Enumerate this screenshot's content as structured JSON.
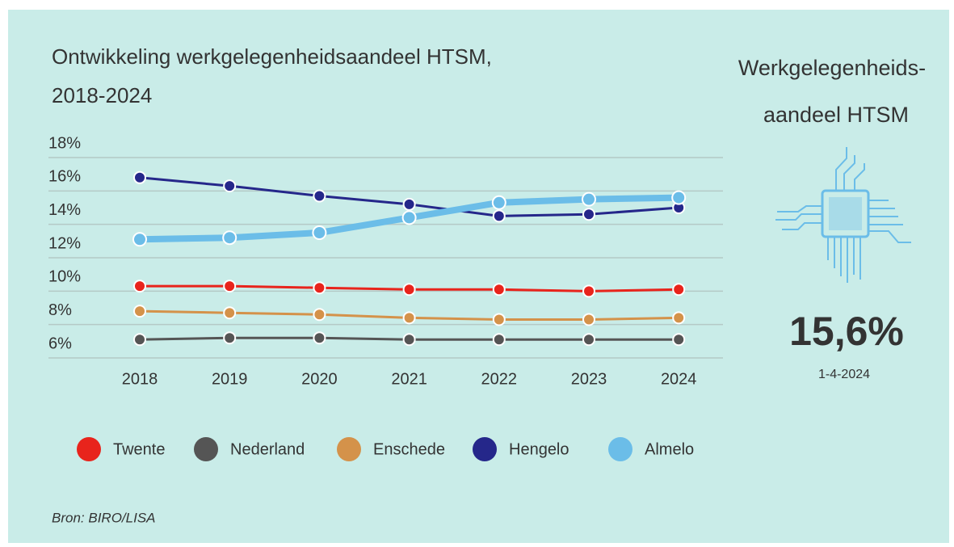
{
  "chart_data": {
    "type": "line",
    "title": [
      "Ontwikkeling werkgelegenheidsaandeel HTSM,",
      "2018-2024"
    ],
    "categories": [
      "2018",
      "2019",
      "2020",
      "2021",
      "2022",
      "2023",
      "2024"
    ],
    "series": [
      {
        "name": "Twente",
        "color": "#e8241c",
        "values": [
          10.3,
          10.3,
          10.2,
          10.1,
          10.1,
          10.0,
          10.1
        ]
      },
      {
        "name": "Nederland",
        "color": "#555555",
        "values": [
          7.1,
          7.2,
          7.2,
          7.1,
          7.1,
          7.1,
          7.1
        ]
      },
      {
        "name": "Enschede",
        "color": "#d4924a",
        "values": [
          8.8,
          8.7,
          8.6,
          8.4,
          8.3,
          8.3,
          8.4
        ]
      },
      {
        "name": "Hengelo",
        "color": "#25278a",
        "values": [
          16.8,
          16.3,
          15.7,
          15.2,
          14.5,
          14.6,
          15.0
        ]
      },
      {
        "name": "Almelo",
        "color": "#6bbde8",
        "values": [
          13.1,
          13.2,
          13.5,
          14.4,
          15.3,
          15.5,
          15.6
        ]
      }
    ],
    "ylim": [
      6,
      18
    ],
    "yticks": [
      {
        "value": 18,
        "label": "18%"
      },
      {
        "value": 16,
        "label": "16%"
      },
      {
        "value": 14,
        "label": "14%"
      },
      {
        "value": 12,
        "label": "12%"
      },
      {
        "value": 10,
        "label": "10%"
      },
      {
        "value": 8,
        "label": "8%"
      },
      {
        "value": 6,
        "label": "6%"
      }
    ],
    "grid": true
  },
  "side_panel": {
    "heading": [
      "Werkgelegenheids-",
      "aandeel HTSM"
    ],
    "value": "15,6%",
    "date": "1-4-2024"
  },
  "source": "Bron: BIRO/LISA"
}
